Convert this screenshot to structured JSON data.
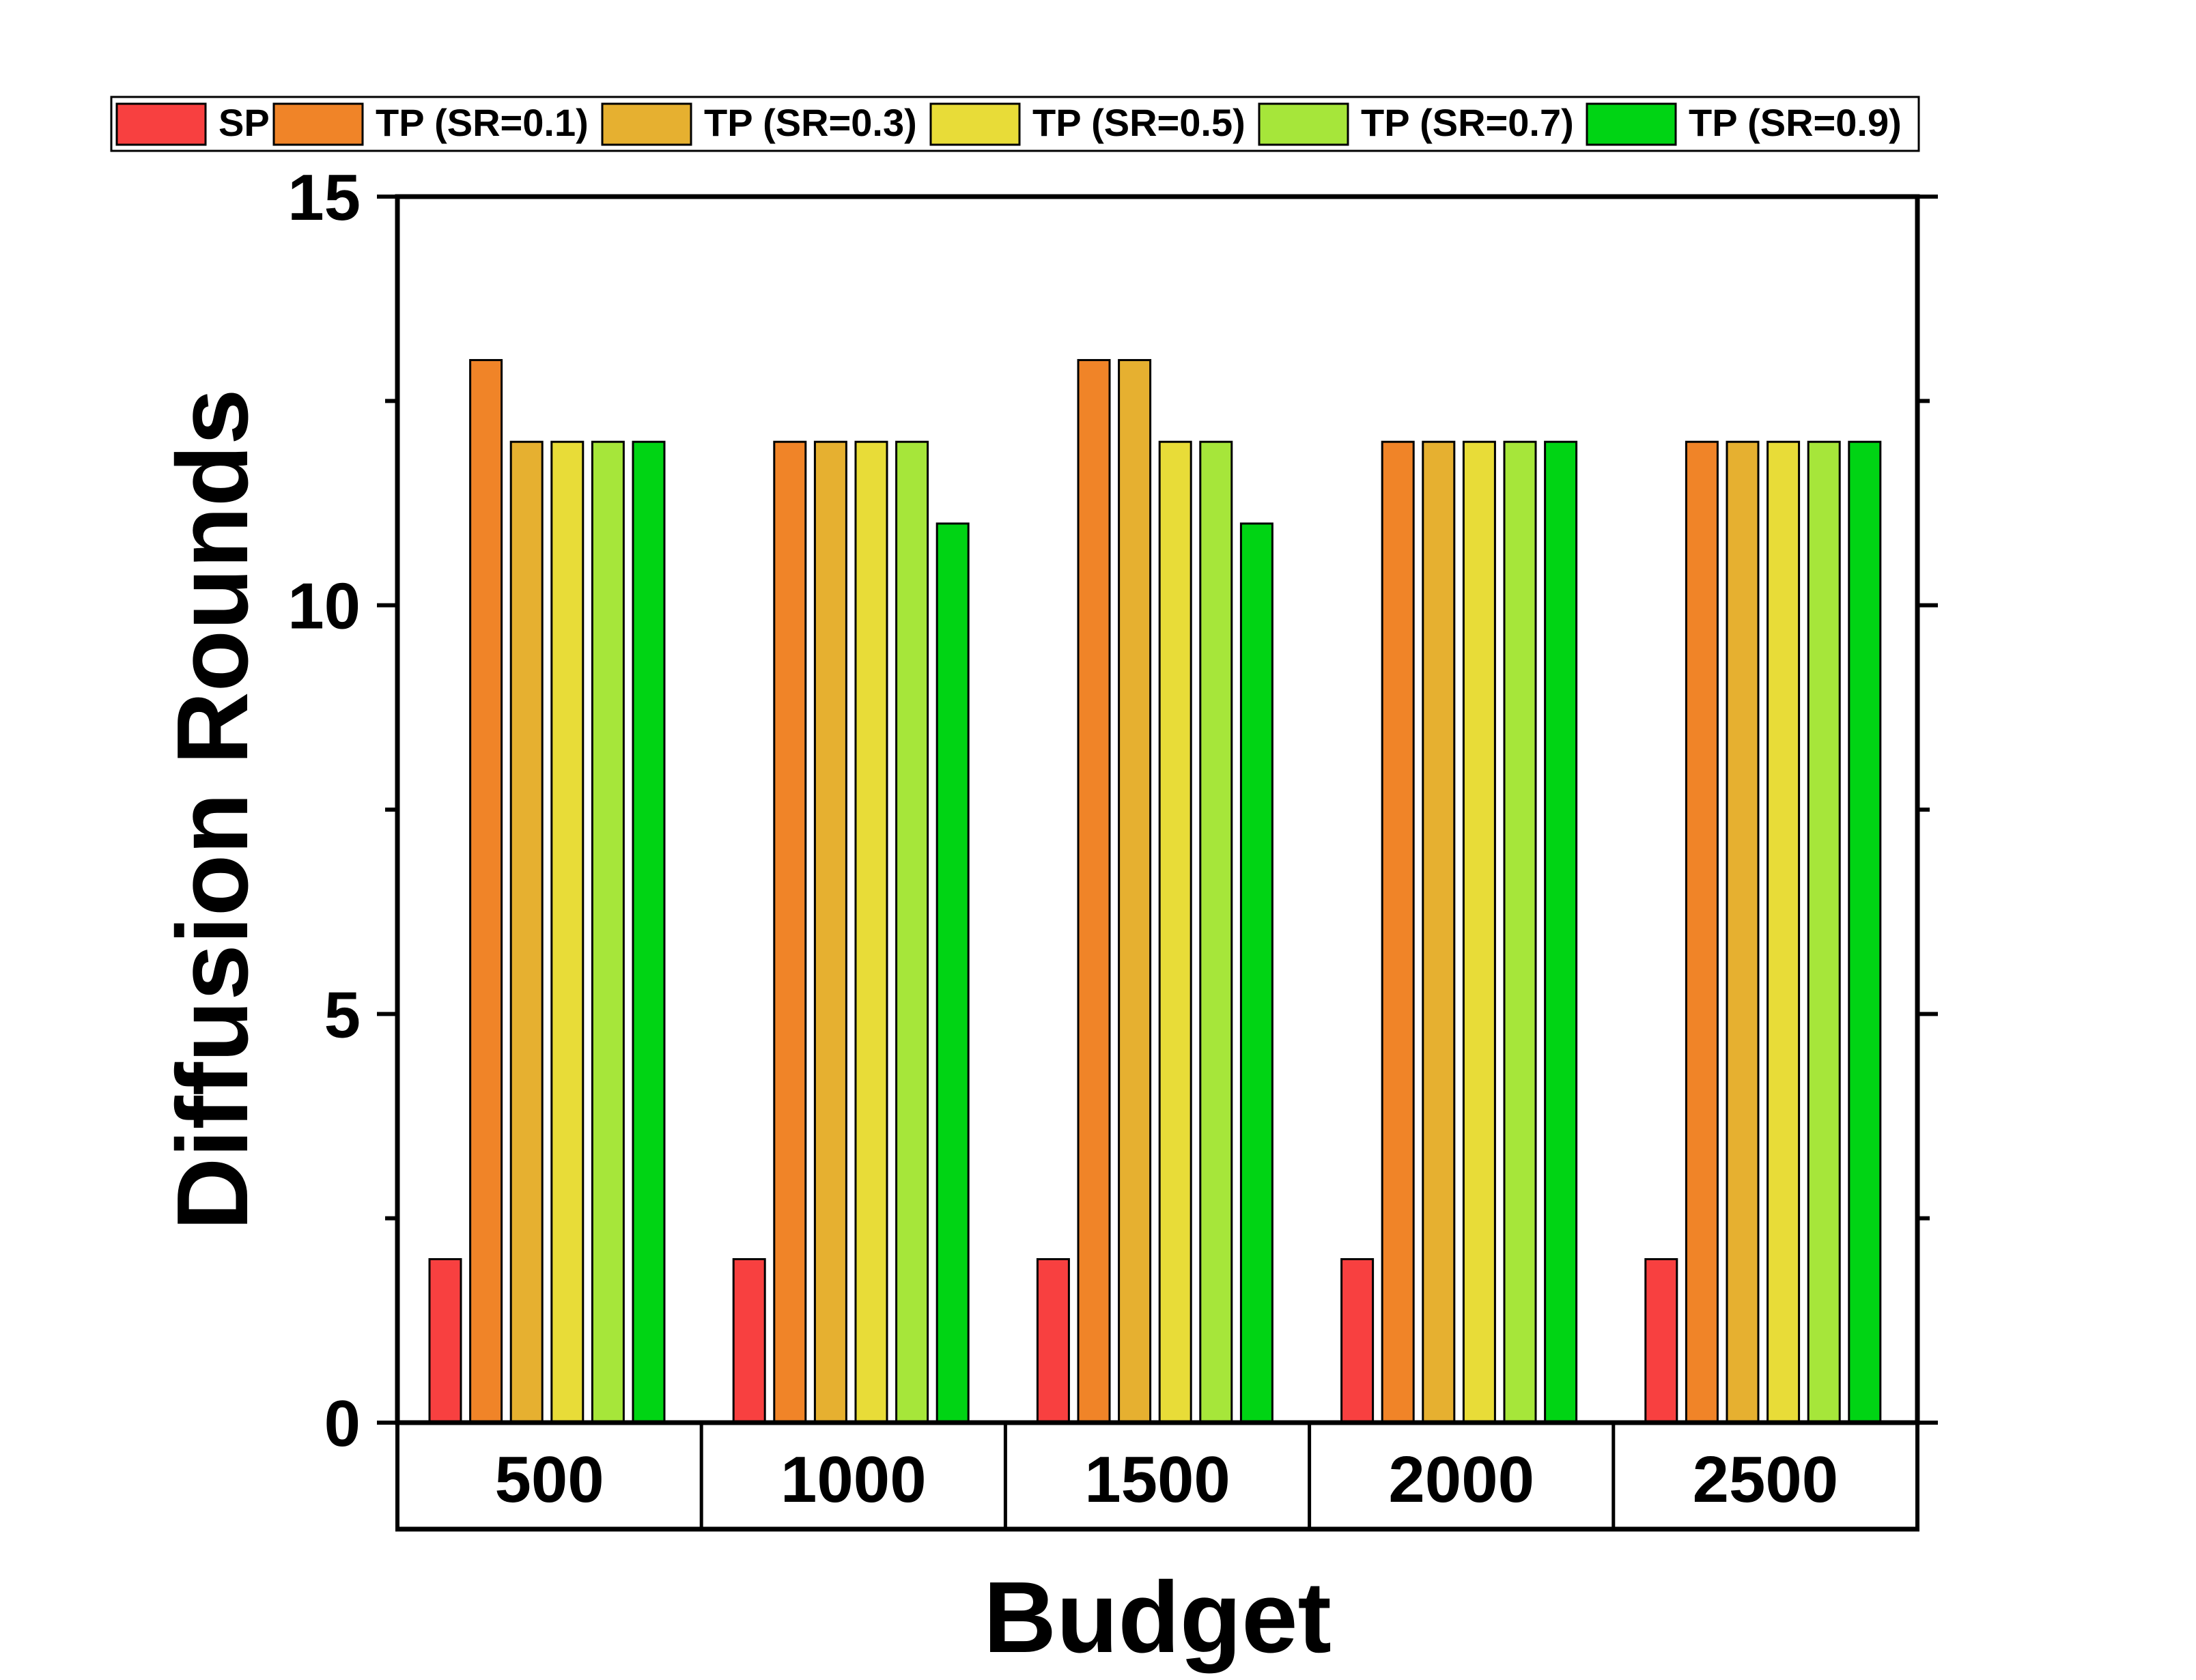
{
  "chart_data": {
    "type": "bar",
    "title": "",
    "xlabel": "Budget",
    "ylabel": "Diffusion Rounds",
    "categories": [
      "500",
      "1000",
      "1500",
      "2000",
      "2500"
    ],
    "ylim": [
      0,
      15
    ],
    "yticks": [
      0,
      5,
      10,
      15
    ],
    "grid": false,
    "legend_position": "top",
    "series": [
      {
        "name": "SP",
        "color": "#F84040",
        "values": [
          2,
          2,
          2,
          2,
          2
        ]
      },
      {
        "name": "TP (SR=0.1)",
        "color": "#F08428",
        "values": [
          13,
          12,
          13,
          12,
          12
        ]
      },
      {
        "name": "TP (SR=0.3)",
        "color": "#E6B030",
        "values": [
          12,
          12,
          13,
          12,
          12
        ]
      },
      {
        "name": "TP (SR=0.5)",
        "color": "#E8DC38",
        "values": [
          12,
          12,
          12,
          12,
          12
        ]
      },
      {
        "name": "TP (SR=0.7)",
        "color": "#A6E63A",
        "values": [
          12,
          12,
          12,
          12,
          12
        ]
      },
      {
        "name": "TP (SR=0.9)",
        "color": "#00D414",
        "values": [
          12,
          11,
          11,
          12,
          12
        ]
      }
    ]
  }
}
